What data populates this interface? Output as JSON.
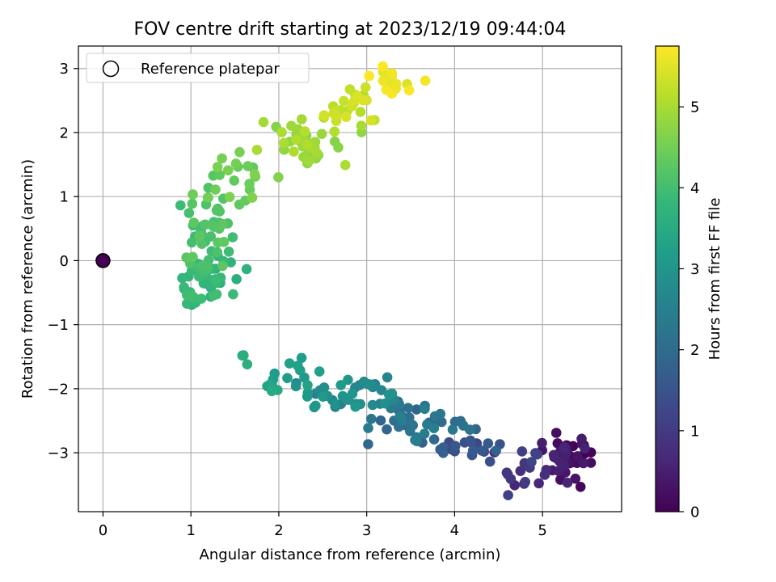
{
  "chart_data": {
    "type": "scatter",
    "title": "FOV centre drift starting at 2023/12/19 09:44:04",
    "xlabel": "Angular distance from reference (arcmin)",
    "ylabel": "Rotation from reference (arcmin)",
    "xlim": [
      -0.28,
      5.9
    ],
    "ylim": [
      -3.92,
      3.35
    ],
    "xticks": [
      0,
      1,
      2,
      3,
      4,
      5
    ],
    "yticks": [
      -3,
      -2,
      -1,
      0,
      1,
      2,
      3
    ],
    "grid": true,
    "legend": {
      "position": "top-left",
      "entries": [
        {
          "label": "Reference platepar",
          "marker": "open-circle"
        }
      ]
    },
    "reference_point": {
      "x": 0,
      "y": 0
    },
    "colorbar": {
      "label": "Hours from first FF file",
      "range": [
        0,
        5.75
      ],
      "ticks": [
        0,
        1,
        2,
        3,
        4,
        5
      ],
      "colormap": "viridis"
    },
    "colormap_stops": [
      "#440154",
      "#482878",
      "#3e4989",
      "#31688e",
      "#26828e",
      "#1f9e89",
      "#35b779",
      "#6ece58",
      "#b5de2b",
      "#fde725"
    ],
    "point_color_variable": "hours",
    "clusters": [
      {
        "hours": [
          0.0,
          0.6
        ],
        "n": 42,
        "cx": 5.25,
        "cy": -3.05,
        "sx": 0.16,
        "sy": 0.18
      },
      {
        "hours": [
          0.6,
          1.2
        ],
        "n": 18,
        "cx": 4.75,
        "cy": -3.25,
        "sx": 0.2,
        "sy": 0.2
      },
      {
        "hours": [
          1.2,
          1.8
        ],
        "n": 22,
        "cx": 4.15,
        "cy": -2.95,
        "sx": 0.22,
        "sy": 0.12
      },
      {
        "hours": [
          1.8,
          2.5
        ],
        "n": 42,
        "cx": 3.55,
        "cy": -2.55,
        "sx": 0.28,
        "sy": 0.18
      },
      {
        "hours": [
          2.5,
          3.1
        ],
        "n": 42,
        "cx": 2.9,
        "cy": -2.05,
        "sx": 0.35,
        "sy": 0.16
      },
      {
        "hours": [
          3.1,
          3.3
        ],
        "n": 12,
        "cx": 2.15,
        "cy": -1.8,
        "sx": 0.22,
        "sy": 0.2
      },
      {
        "hours": [
          3.3,
          3.5
        ],
        "n": 4,
        "cx": 1.9,
        "cy": -2.05,
        "sx": 0.05,
        "sy": 0.15
      },
      {
        "hours": [
          3.55,
          3.6
        ],
        "n": 3,
        "cx": 1.6,
        "cy": -1.5,
        "sx": 0.08,
        "sy": 0.1
      },
      {
        "hours": [
          3.6,
          4.0
        ],
        "n": 45,
        "cx": 1.18,
        "cy": -0.35,
        "sx": 0.13,
        "sy": 0.2
      },
      {
        "hours": [
          3.9,
          4.3
        ],
        "n": 45,
        "cx": 1.2,
        "cy": 0.45,
        "sx": 0.14,
        "sy": 0.38
      },
      {
        "hours": [
          4.3,
          4.65
        ],
        "n": 22,
        "cx": 1.6,
        "cy": 1.25,
        "sx": 0.22,
        "sy": 0.25
      },
      {
        "hours": [
          4.65,
          5.1
        ],
        "n": 40,
        "cx": 2.35,
        "cy": 1.8,
        "sx": 0.28,
        "sy": 0.22
      },
      {
        "hours": [
          5.1,
          5.45
        ],
        "n": 24,
        "cx": 2.8,
        "cy": 2.45,
        "sx": 0.2,
        "sy": 0.18
      },
      {
        "hours": [
          5.45,
          5.75
        ],
        "n": 18,
        "cx": 3.3,
        "cy": 2.8,
        "sx": 0.12,
        "sy": 0.22
      }
    ]
  }
}
